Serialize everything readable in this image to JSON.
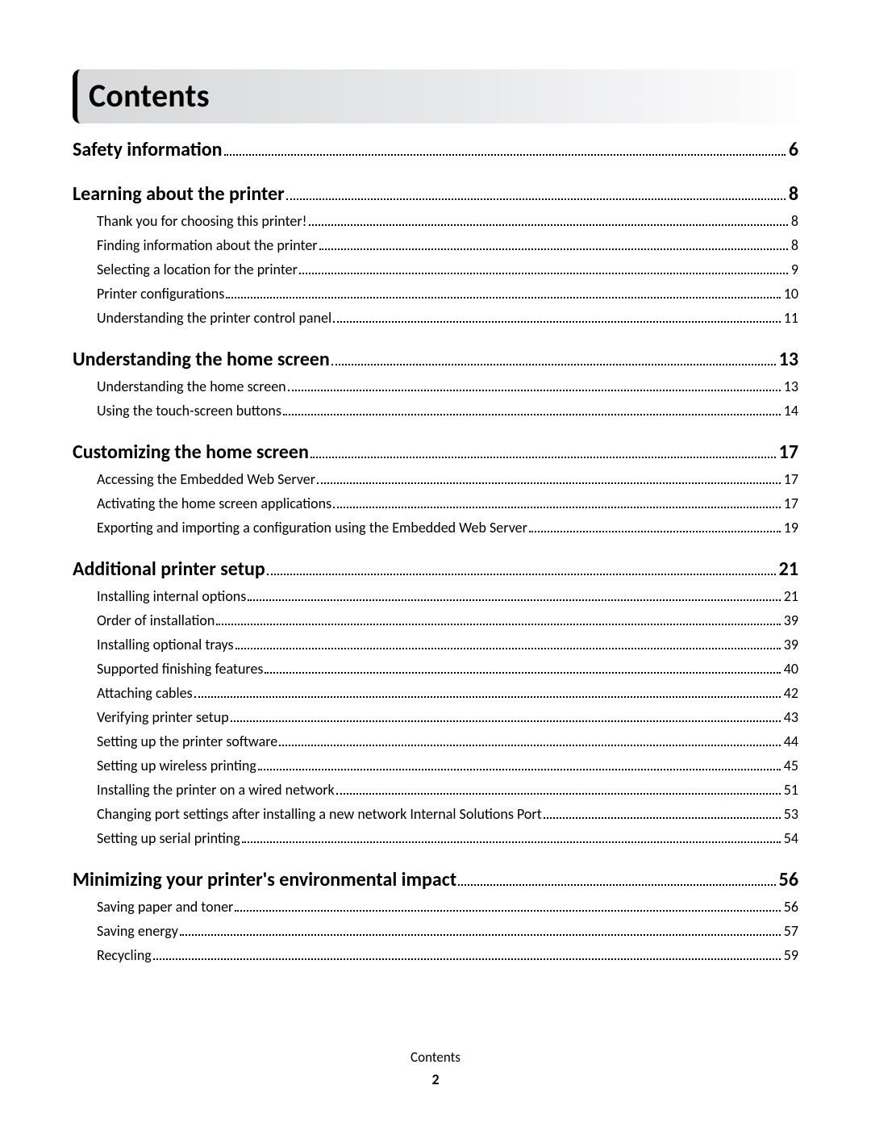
{
  "colors": {
    "text": "#000000",
    "background": "#ffffff",
    "titlebar_gradient_from": "#d7d8da",
    "titlebar_gradient_to": "#fdfdfe",
    "titlebar_border": "#000000"
  },
  "title": "Contents",
  "footer": {
    "label": "Contents",
    "page_number": "2"
  },
  "sections": [
    {
      "title": "Safety information",
      "page": "6",
      "items": []
    },
    {
      "title": "Learning about the printer",
      "page": "8",
      "items": [
        {
          "title": "Thank you for choosing this printer!",
          "page": "8"
        },
        {
          "title": "Finding information about the printer",
          "page": "8"
        },
        {
          "title": "Selecting a location for the printer",
          "page": "9"
        },
        {
          "title": "Printer configurations",
          "page": "10"
        },
        {
          "title": "Understanding the printer control panel",
          "page": "11"
        }
      ]
    },
    {
      "title": "Understanding the home screen",
      "page": "13",
      "items": [
        {
          "title": "Understanding the home screen",
          "page": "13"
        },
        {
          "title": "Using the touch-screen buttons",
          "page": "14"
        }
      ]
    },
    {
      "title": "Customizing the home screen",
      "page": "17",
      "items": [
        {
          "title": "Accessing the Embedded Web Server",
          "page": "17"
        },
        {
          "title": "Activating the home screen applications",
          "page": "17"
        },
        {
          "title": "Exporting and importing a configuration using the Embedded Web Server",
          "page": "19"
        }
      ]
    },
    {
      "title": "Additional printer setup",
      "page": "21",
      "items": [
        {
          "title": "Installing internal options",
          "page": "21"
        },
        {
          "title": "Order of installation",
          "page": "39"
        },
        {
          "title": "Installing optional trays",
          "page": "39"
        },
        {
          "title": "Supported finishing features",
          "page": "40"
        },
        {
          "title": "Attaching cables",
          "page": "42"
        },
        {
          "title": "Verifying printer setup",
          "page": "43"
        },
        {
          "title": "Setting up the printer software",
          "page": "44"
        },
        {
          "title": "Setting up wireless printing",
          "page": "45"
        },
        {
          "title": "Installing the printer on a wired network",
          "page": "51"
        },
        {
          "title": "Changing port settings after installing a new network Internal Solutions Port",
          "page": "53"
        },
        {
          "title": "Setting up serial printing",
          "page": "54"
        }
      ]
    },
    {
      "title": "Minimizing your printer's environmental impact",
      "page": "56",
      "items": [
        {
          "title": "Saving paper and toner",
          "page": "56"
        },
        {
          "title": "Saving energy",
          "page": "57"
        },
        {
          "title": "Recycling",
          "page": "59"
        }
      ]
    }
  ]
}
